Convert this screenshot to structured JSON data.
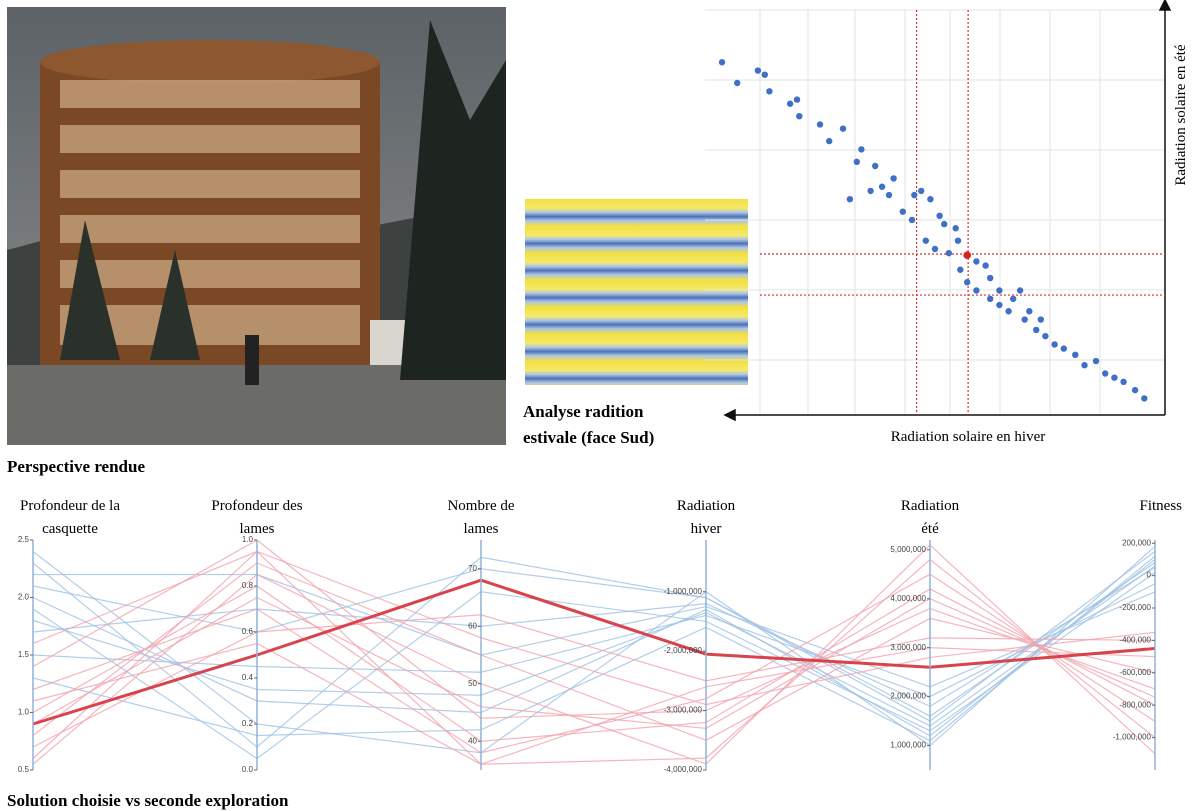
{
  "figure": {
    "photo_caption": "Perspective rendue",
    "heatmap_caption": [
      "Analyse radition",
      "estivale (face Sud)"
    ],
    "parallel_caption": "Solution choisie vs seconde exploration"
  },
  "chart_data": [
    {
      "type": "scatter",
      "xlabel": "Radiation solaire en hiver",
      "ylabel": "Radiation solaire en été",
      "xlim": [
        0,
        100
      ],
      "ylim": [
        0,
        100
      ],
      "color": "#3f6fc6",
      "x": [
        3.7,
        7,
        11.5,
        13,
        14,
        18.5,
        20,
        20.5,
        25,
        27,
        30,
        33,
        34,
        37,
        38.5,
        40,
        43,
        45,
        47,
        48,
        50,
        51,
        53,
        54.5,
        55.5,
        57,
        59,
        61,
        62,
        64,
        66,
        68.5,
        69.5,
        72,
        74,
        76,
        78,
        80.5,
        82.5,
        85,
        87,
        89,
        91,
        93.5,
        95.5,
        31.5,
        36,
        41,
        45.5,
        49,
        52,
        55,
        59,
        62,
        64,
        67,
        70.5,
        73
      ],
      "y": [
        85,
        80,
        83,
        82,
        78,
        75,
        76,
        72,
        70,
        66,
        69,
        61,
        64,
        60,
        55,
        53,
        49,
        47,
        54,
        42,
        40,
        48,
        39,
        45,
        35,
        32,
        30,
        36,
        28,
        26.5,
        25,
        30,
        23,
        20.5,
        19,
        17,
        16,
        14.5,
        12,
        13,
        10,
        9,
        8,
        6,
        4,
        52,
        54,
        57,
        53,
        52,
        46,
        42,
        37,
        33,
        30,
        28,
        25,
        23
      ],
      "selected": {
        "x": 57,
        "y": 38.5,
        "color": "#e02020"
      },
      "ref_x": [
        46,
        57.2
      ],
      "ref_y": [
        38.8,
        28.9
      ],
      "ref_color": "#d03030"
    },
    {
      "type": "parallel",
      "axes": [
        {
          "label": [
            "Profondeur de la",
            "casquette"
          ],
          "lim": [
            0.5,
            2.5
          ],
          "ticks": [
            0.5,
            {
              "value": 1,
              "label": "1.0"
            },
            1.5,
            {
              "value": 2,
              "label": "2.0"
            },
            2.5
          ]
        },
        {
          "label": [
            "Profondeur des",
            "lames"
          ],
          "lim": [
            0,
            1
          ],
          "ticks": [
            {
              "value": 0,
              "label": "0.0"
            },
            0.2,
            0.4,
            0.6,
            0.8,
            {
              "value": 1,
              "label": "1.0"
            }
          ]
        },
        {
          "label": [
            "Nombre de",
            "lames"
          ],
          "lim": [
            35,
            75
          ],
          "ticks": [
            40,
            50,
            60,
            70
          ]
        },
        {
          "label": [
            "Radiation",
            "hiver"
          ],
          "lim": [
            -4000000,
            -130000
          ],
          "ticks": [
            {
              "value": -1000000,
              "label": "-1,000,000"
            },
            {
              "value": -2000000,
              "label": "-2,000,000"
            },
            {
              "value": -3000000,
              "label": "-3,000,000"
            },
            {
              "value": -4000000,
              "label": "-4,000,000"
            }
          ]
        },
        {
          "label": [
            "Radiation",
            "été"
          ],
          "lim": [
            500000,
            5200000
          ],
          "ticks": [
            {
              "value": 1000000,
              "label": "1,000,000"
            },
            {
              "value": 2000000,
              "label": "2,000,000"
            },
            {
              "value": 3000000,
              "label": "3,000,000"
            },
            {
              "value": 4000000,
              "label": "4,000,000"
            },
            {
              "value": 5000000,
              "label": "5,000,000"
            }
          ]
        },
        {
          "label": [
            "Fitness"
          ],
          "lim": [
            -1200000,
            220000
          ],
          "ticks": [
            {
              "value": 200000,
              "label": "200,000"
            },
            0,
            {
              "value": -200000,
              "label": "-200,000"
            },
            {
              "value": -400000,
              "label": "-400,000"
            },
            {
              "value": -600000,
              "label": "-600,000"
            },
            {
              "value": -800000,
              "label": "-800,000"
            },
            {
              "value": -1000000,
              "label": "-1,000,000"
            }
          ]
        }
      ],
      "series": [
        {
          "color": "#9fc2e4",
          "width": 1.2,
          "lines": [
            [
              2.3,
              0.1,
              72,
              -1100000,
              1500000,
              150000
            ],
            [
              2.0,
              0.3,
              45,
              -1300000,
              1200000,
              100000
            ],
            [
              1.7,
              0.7,
              60,
              -1200000,
              1800000,
              50000
            ],
            [
              2.4,
              0.2,
              38,
              -1000000,
              1000000,
              180000
            ],
            [
              1.9,
              0.05,
              66,
              -1500000,
              1300000,
              20000
            ],
            [
              1.5,
              0.45,
              52,
              -1400000,
              2000000,
              -50000
            ],
            [
              2.1,
              0.6,
              70,
              -1100000,
              1600000,
              80000
            ],
            [
              1.3,
              0.15,
              42,
              -1600000,
              1100000,
              120000
            ],
            [
              2.2,
              0.85,
              55,
              -1250000,
              2200000,
              -100000
            ],
            [
              1.8,
              0.35,
              48,
              -1350000,
              1400000,
              60000
            ]
          ]
        },
        {
          "color": "#f2a3ac",
          "width": 1.2,
          "lines": [
            [
              0.6,
              0.95,
              36,
              -3800000,
              4800000,
              -1000000
            ],
            [
              1.0,
              0.8,
              40,
              -3200000,
              4200000,
              -800000
            ],
            [
              0.8,
              0.9,
              55,
              -3500000,
              3600000,
              -600000
            ],
            [
              1.2,
              0.7,
              38,
              -2800000,
              4500000,
              -900000
            ],
            [
              0.7,
              0.6,
              62,
              -2500000,
              3200000,
              -400000
            ],
            [
              1.4,
              1.0,
              44,
              -3000000,
              3800000,
              -700000
            ],
            [
              0.55,
              0.85,
              50,
              -3900000,
              5100000,
              -1100000
            ],
            [
              1.1,
              0.55,
              36,
              -2600000,
              3000000,
              -500000
            ],
            [
              0.9,
              0.75,
              46,
              -3300000,
              4000000,
              -750000
            ],
            [
              1.6,
              0.95,
              58,
              -2900000,
              2800000,
              -350000
            ]
          ]
        },
        {
          "color": "#d9434c",
          "width": 3,
          "lines": [
            [
              0.9,
              0.5,
              68,
              -2050000,
              2600000,
              -450000
            ]
          ]
        }
      ]
    }
  ]
}
